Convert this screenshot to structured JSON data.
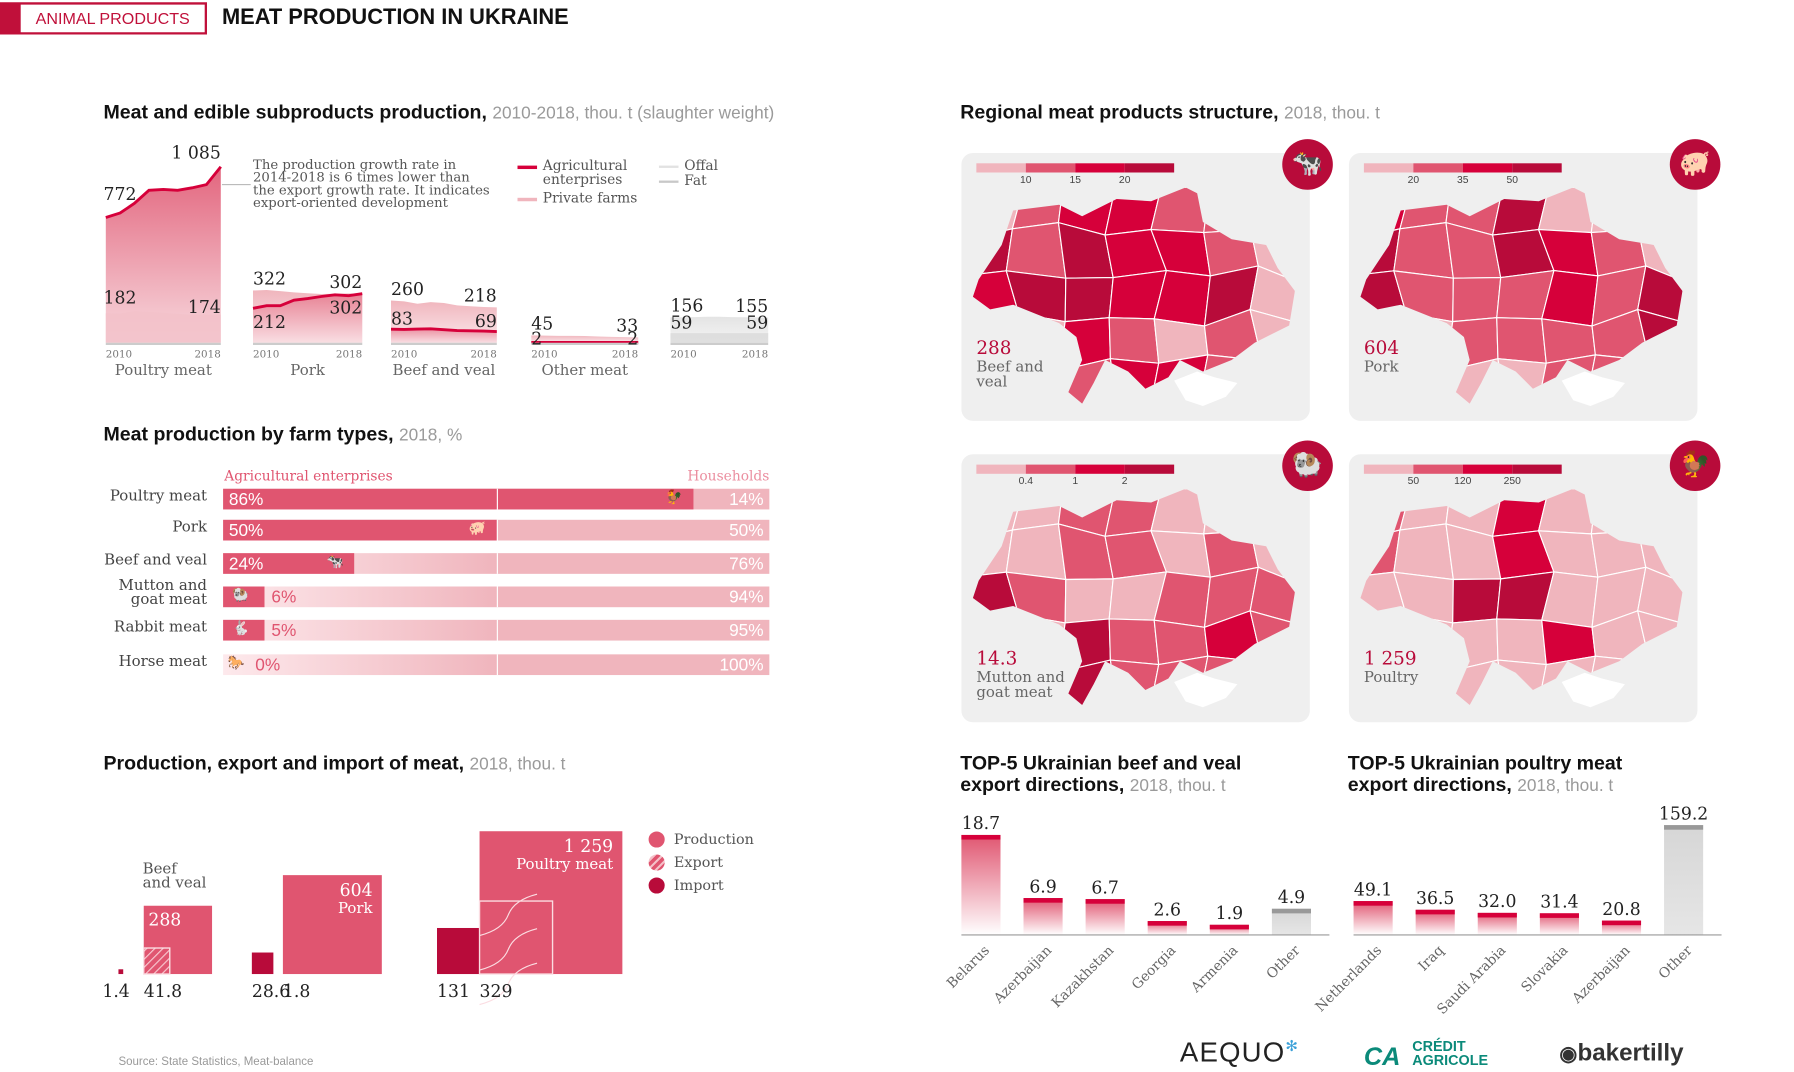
{
  "header": {
    "tag": "ANIMAL PRODUCTS",
    "title": "MEAT PRODUCTION IN UKRAINE"
  },
  "colors": {
    "brand": "#c0103a",
    "agri": "#e05570",
    "households": "#f0b5bd",
    "import": "#b80b3a",
    "other": "#d6d6d6",
    "level0": "#f0b5bd",
    "level1": "#e05570",
    "level2": "#d6003a",
    "level3": "#b80b3a"
  },
  "production": {
    "title": "Meat and edible subproducts production,",
    "subtitle": "2010-2018, thou. t (slaughter weight)",
    "note": "The production growth rate in 2014-2018 is 6 times lower than the export growth rate. It indicates export-oriented development",
    "legend": {
      "agri": "Agricultural enterprises",
      "private": "Private farms",
      "offal": "Offal",
      "fat": "Fat"
    },
    "year_start": "2010",
    "year_end": "2018"
  },
  "chart_data": [
    {
      "type": "area",
      "x": [
        2010,
        2011,
        2012,
        2013,
        2014,
        2015,
        2016,
        2017,
        2018
      ],
      "panels": [
        {
          "name": "Poultry meat",
          "series": [
            {
              "name": "Agricultural enterprises",
              "values": [
                772,
                800,
                860,
                940,
                945,
                940,
                955,
                975,
                1085
              ]
            },
            {
              "name": "Private farms",
              "values": [
                182,
                180,
                195,
                190,
                185,
                178,
                172,
                172,
                174
              ]
            }
          ],
          "labels": {
            "top_start": "772",
            "top_end": "1 085",
            "low_start": "182",
            "low_end": "174"
          }
        },
        {
          "name": "Pork",
          "series": [
            {
              "name": "Private farms",
              "values": [
                322,
                325,
                318,
                310,
                305,
                300,
                302,
                304,
                302
              ]
            },
            {
              "name": "Agricultural enterprises",
              "values": [
                212,
                228,
                228,
                262,
                272,
                285,
                295,
                290,
                302
              ]
            }
          ],
          "labels": {
            "top_start": "322",
            "top_end": "302",
            "low_start": "212",
            "low_end": "302"
          }
        },
        {
          "name": "Beef and veal",
          "series": [
            {
              "name": "Private farms",
              "values": [
                260,
                255,
                240,
                250,
                245,
                230,
                225,
                220,
                218
              ]
            },
            {
              "name": "Agricultural enterprises",
              "values": [
                83,
                82,
                84,
                86,
                80,
                75,
                73,
                72,
                69
              ]
            }
          ],
          "labels": {
            "top_start": "260",
            "top_end": "218",
            "low_start": "83",
            "low_end": "69"
          }
        },
        {
          "name": "Other meat",
          "series": [
            {
              "name": "Private farms",
              "values": [
                45,
                44,
                42,
                42,
                41,
                38,
                36,
                34,
                33
              ]
            },
            {
              "name": "Agricultural enterprises",
              "values": [
                2,
                2,
                2,
                2,
                2,
                2,
                2,
                2,
                2
              ]
            }
          ],
          "labels": {
            "top_start": "45",
            "top_end": "33",
            "low_start": "2",
            "low_end": "2"
          }
        },
        {
          "name": "",
          "series": [
            {
              "name": "Offal",
              "values": [
                156,
                157,
                158,
                160,
                160,
                158,
                157,
                156,
                155
              ]
            },
            {
              "name": "Fat",
              "values": [
                59,
                59,
                59,
                59,
                59,
                59,
                59,
                59,
                59
              ]
            }
          ],
          "labels": {
            "top_start": "156",
            "top_end": "155",
            "low_start": "59",
            "low_end": "59"
          }
        }
      ]
    },
    {
      "type": "bar",
      "stacked": true,
      "legend": [
        "Agricultural enterprises",
        "Households"
      ],
      "categories": [
        "Poultry meat",
        "Pork",
        "Beef and veal",
        "Mutton and goat meat",
        "Rabbit meat",
        "Horse meat"
      ],
      "icons": [
        "chicken-icon",
        "pig-icon",
        "cow-icon",
        "ram-icon",
        "rabbit-icon",
        "horse-icon"
      ],
      "series": [
        {
          "name": "Agricultural enterprises",
          "values": [
            86,
            50,
            24,
            6,
            5,
            0
          ]
        },
        {
          "name": "Households",
          "values": [
            14,
            50,
            76,
            94,
            95,
            100
          ]
        }
      ]
    },
    {
      "type": "bar",
      "encoding": "square area",
      "legend": [
        "Production",
        "Export",
        "Import"
      ],
      "groups": [
        {
          "name": "Beef and veal",
          "production": 288,
          "export": 41.8,
          "import": 1.4,
          "labels": {
            "production": "288",
            "export": "41.8",
            "import": "1.4"
          }
        },
        {
          "name": "Pork",
          "production": 604,
          "export": 1.8,
          "import": 28.6,
          "labels": {
            "production": "604",
            "export": "1.8",
            "import": "28.6"
          }
        },
        {
          "name": "Poultry meat",
          "production": 1259,
          "export": 329,
          "import": 131,
          "labels": {
            "production": "1 259",
            "export": "329",
            "import": "131"
          }
        }
      ]
    },
    {
      "type": "bar",
      "categories": [
        "Belarus",
        "Azerbaijan",
        "Kazakhstan",
        "Georgia",
        "Armenia",
        "Other"
      ],
      "values": [
        18.7,
        6.9,
        6.7,
        2.6,
        1.9,
        4.9
      ],
      "labels": [
        "18.7",
        "6.9",
        "6.7",
        "2.6",
        "1.9",
        "4.9"
      ]
    },
    {
      "type": "bar",
      "categories": [
        "Netherlands",
        "Iraq",
        "Saudi Arabia",
        "Slovakia",
        "Azerbaijan",
        "Other"
      ],
      "values": [
        49.1,
        36.5,
        32.0,
        31.4,
        20.8,
        159.2
      ],
      "labels": [
        "49.1",
        "36.5",
        "32.0",
        "31.4",
        "20.8",
        "159.2"
      ]
    }
  ],
  "regional": {
    "title": "Regional meat products structure,",
    "subtitle": "2018, thou. t",
    "maps": [
      {
        "total": "288",
        "name": "Beef and veal",
        "icon": "cow-icon",
        "thresholds": [
          "10",
          "15",
          "20"
        ],
        "levels": [
          0,
          1,
          2,
          2,
          1,
          1,
          0,
          3,
          1,
          3,
          2,
          2,
          1,
          0,
          2,
          3,
          3,
          2,
          2,
          3,
          0,
          2,
          0,
          2,
          1,
          0,
          1,
          0,
          1,
          1,
          1,
          2,
          2,
          1,
          0
        ]
      },
      {
        "total": "604",
        "name": "Pork",
        "icon": "pig-icon",
        "thresholds": [
          "20",
          "35",
          "50"
        ],
        "levels": [
          2,
          1,
          1,
          3,
          0,
          0,
          0,
          3,
          1,
          1,
          3,
          2,
          1,
          0,
          3,
          1,
          1,
          1,
          2,
          1,
          3,
          2,
          0,
          1,
          1,
          1,
          1,
          3,
          1,
          1,
          0,
          0,
          1,
          1,
          0
        ]
      },
      {
        "total": "14.3",
        "name": "Mutton and goat meat",
        "icon": "ram-icon",
        "thresholds": [
          "0.4",
          "1",
          "2"
        ],
        "levels": [
          0,
          0,
          1,
          1,
          0,
          0,
          0,
          0,
          0,
          1,
          1,
          0,
          1,
          0,
          3,
          1,
          0,
          0,
          1,
          1,
          1,
          0,
          0,
          3,
          1,
          1,
          2,
          1,
          0,
          0,
          3,
          1,
          1,
          1,
          0
        ]
      },
      {
        "total": "1 259",
        "name": "Poultry",
        "icon": "chicken-icon",
        "thresholds": [
          "50",
          "120",
          "250"
        ],
        "levels": [
          1,
          0,
          0,
          2,
          0,
          0,
          0,
          1,
          0,
          0,
          2,
          0,
          0,
          0,
          0,
          0,
          3,
          3,
          0,
          0,
          0,
          0,
          0,
          0,
          0,
          2,
          0,
          0,
          0,
          0,
          0,
          0,
          0,
          0,
          0
        ]
      }
    ]
  },
  "exports": {
    "beef": {
      "title": "TOP-5 Ukrainian beef and veal",
      "title2": "export directions,",
      "subtitle": "2018, thou. t"
    },
    "poultry": {
      "title": "TOP-5 Ukrainian poultry meat",
      "title2": "export directions,",
      "subtitle": "2018, thou. t"
    }
  },
  "farm": {
    "title": "Meat production by farm types,",
    "subtitle": "2018, %",
    "agri": "Agricultural enterprises",
    "households": "Households",
    "rows": [
      {
        "label": "Poultry meat",
        "agri": "86%",
        "house": "14%"
      },
      {
        "label": "Pork",
        "agri": "50%",
        "house": "50%"
      },
      {
        "label": "Beef and veal",
        "agri": "24%",
        "house": "76%"
      },
      {
        "label": "Mutton and goat meat",
        "agri": "6%",
        "house": "94%"
      },
      {
        "label": "Rabbit meat",
        "agri": "5%",
        "house": "95%"
      },
      {
        "label": "Horse meat",
        "agri": "0%",
        "house": "100%"
      }
    ]
  },
  "pei": {
    "title": "Production, export and import of meat,",
    "subtitle": "2018, thou. t",
    "legend": {
      "production": "Production",
      "export": "Export",
      "import": "Import"
    }
  },
  "source": "Source: State Statistics, Meat-balance",
  "logos": {
    "aequo": "AEQUO",
    "ca1": "CRÉDIT",
    "ca2": "AGRICOLE",
    "bt": "bakertilly"
  }
}
